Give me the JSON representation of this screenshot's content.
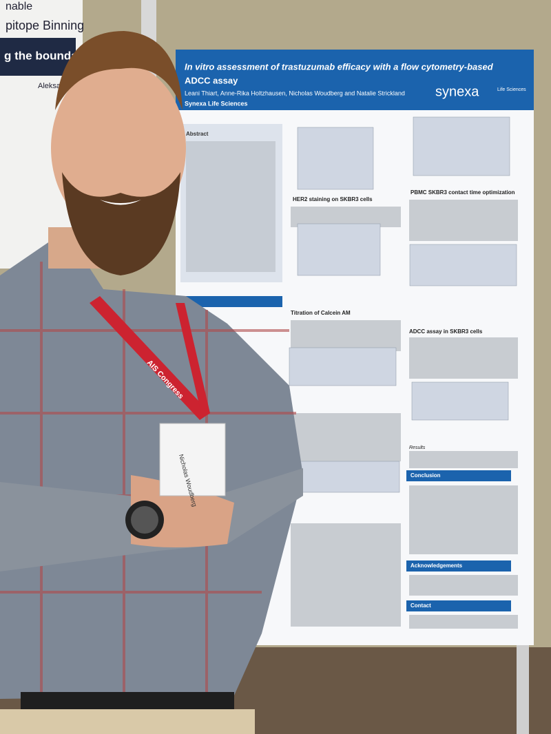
{
  "left_poster": {
    "lines": [
      "nable",
      "pitope Binning",
      "g the boundaries",
      "Aleksandr"
    ]
  },
  "poster": {
    "title_lines": [
      "In vitro assessment of trastuzumab efficacy with a flow cytometry-based",
      "ADCC assay"
    ],
    "authors": "Leani Thiart, Anne-Rika Holtzhausen, Nicholas Woudberg and Natalie Strickland",
    "affiliation": "Synexa Life Sciences",
    "logo": "synexa",
    "logo_sub": "Life Sciences",
    "headings": [
      "Abstract",
      "HER2 staining on SKBR3 cells",
      "Titration of Calcein AM",
      "PBMC SKBR3 contact time optimization",
      "ADCC assay in SKBR3 cells",
      "Results"
    ],
    "bar_headings": [
      "Conclusion",
      "Acknowledgements",
      "Contact"
    ]
  },
  "lanyard": "AIS Congress",
  "badge": "Nicholas Woudberg"
}
